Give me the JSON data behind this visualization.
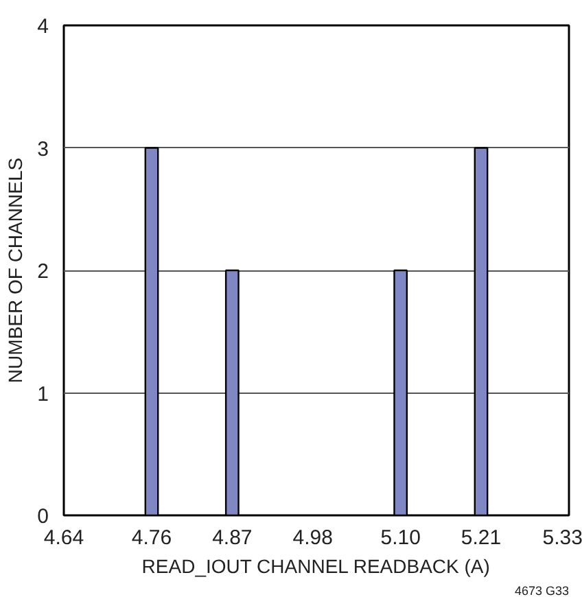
{
  "chart_data": {
    "type": "bar",
    "xlabel": "READ_IOUT CHANNEL READBACK (A)",
    "ylabel": "NUMBER OF CHANNELS",
    "x": [
      4.76,
      4.87,
      5.1,
      5.21
    ],
    "values": [
      3,
      2,
      2,
      3
    ],
    "color": "#7f87c4",
    "xlim": [
      4.64,
      5.33
    ],
    "xticks": [
      4.64,
      4.76,
      4.87,
      4.98,
      {
        "value": 5.1,
        "label": "5.10"
      },
      5.21,
      5.33
    ],
    "ylim": [
      0,
      4
    ],
    "yticks": [
      0,
      1,
      2,
      3,
      4
    ],
    "grid": "y",
    "annotations": [
      "4673 G33"
    ]
  }
}
